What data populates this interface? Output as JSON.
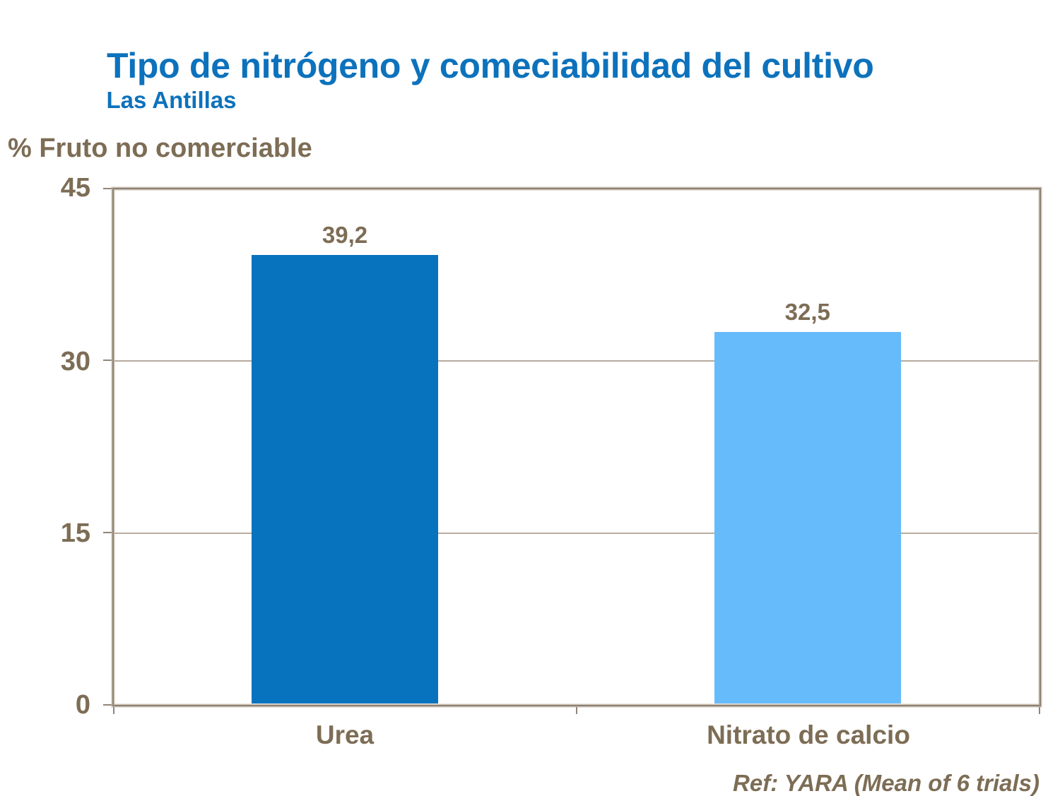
{
  "slide": {
    "title": "Tipo de nitrógeno y comeciabilidad del cultivo",
    "subtitle": "Las Antillas",
    "footer": "Ref: YARA (Mean of 6 trials)"
  },
  "chart_data": {
    "type": "bar",
    "ylabel": "% Fruto no comerciable",
    "xlabel": "",
    "categories": [
      "Urea",
      "Nitrato de calcio"
    ],
    "values": [
      39.2,
      32.5
    ],
    "value_labels": [
      "39,2",
      "32,5"
    ],
    "ylim": [
      0,
      45
    ],
    "yticks": [
      0,
      15,
      30,
      45
    ],
    "ytick_labels": [
      "0",
      "15",
      "30",
      "45"
    ],
    "grid": "horizontal",
    "legend_position": "none",
    "colors": {
      "urea_bar": "#0772BE",
      "nitrato_bar": "#66BBFA",
      "title_text": "#0D72BC",
      "axis_text": "#7D6D55",
      "axis_line": "#91867A",
      "gridline": "#B7AC9F"
    }
  }
}
